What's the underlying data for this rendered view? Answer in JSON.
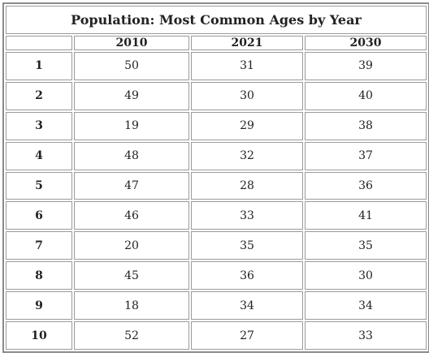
{
  "table": {
    "title": "Population: Most Common Ages by Year",
    "headers": [
      "2010",
      "2021",
      "2030"
    ],
    "rows": [
      [
        1,
        50,
        31,
        39
      ],
      [
        2,
        49,
        30,
        40
      ],
      [
        3,
        19,
        29,
        38
      ],
      [
        4,
        48,
        32,
        37
      ],
      [
        5,
        47,
        28,
        36
      ],
      [
        6,
        46,
        33,
        41
      ],
      [
        7,
        20,
        35,
        35
      ],
      [
        8,
        45,
        36,
        30
      ],
      [
        9,
        18,
        34,
        34
      ],
      [
        10,
        52,
        27,
        33
      ]
    ]
  }
}
